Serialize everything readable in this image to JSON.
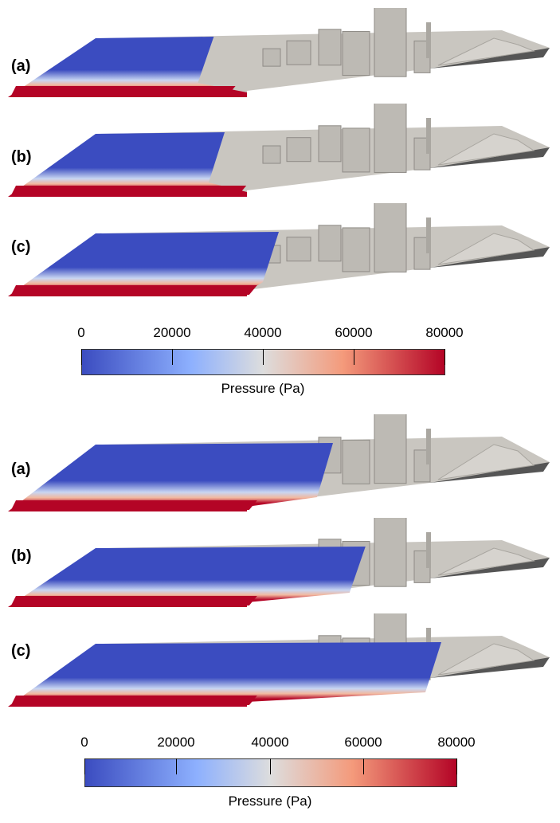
{
  "figure": {
    "groups": [
      {
        "panels": [
          {
            "label": "(a)",
            "flood_extent": 0.38,
            "high_pressure_extent": 0.42
          },
          {
            "label": "(b)",
            "flood_extent": 0.4,
            "high_pressure_extent": 0.44
          },
          {
            "label": "(c)",
            "flood_extent": 0.5,
            "high_pressure_extent": 0.46
          }
        ],
        "colorbar": {
          "ticks": [
            "0",
            "20000",
            "40000",
            "60000",
            "80000"
          ],
          "title": "Pressure (Pa)"
        }
      },
      {
        "panels": [
          {
            "label": "(a)",
            "flood_extent": 0.6,
            "high_pressure_extent": 0.46
          },
          {
            "label": "(b)",
            "flood_extent": 0.66,
            "high_pressure_extent": 0.46
          },
          {
            "label": "(c)",
            "flood_extent": 0.8,
            "high_pressure_extent": 0.46
          }
        ],
        "colorbar": {
          "ticks": [
            "0",
            "20000",
            "40000",
            "60000",
            "80000"
          ],
          "title": "Pressure (Pa)"
        }
      }
    ],
    "colors": {
      "low": "#3b4cc0",
      "mid": "#dddddd",
      "high": "#b40426",
      "terrain": "#c9c6c0",
      "road": "#555555"
    }
  }
}
